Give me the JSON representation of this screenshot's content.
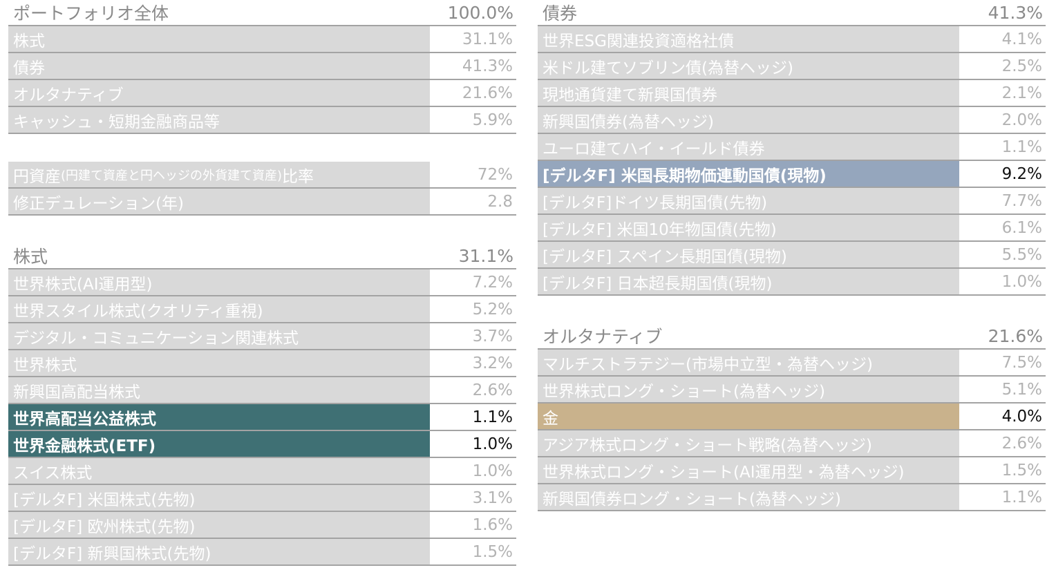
{
  "portfolio": {
    "title": "ポートフォリオ全体",
    "total": "100.0%",
    "rows": [
      {
        "label": "株式",
        "value": "31.1%"
      },
      {
        "label": "債券",
        "value": "41.3%"
      },
      {
        "label": "オルタナティブ",
        "value": "21.6%"
      },
      {
        "label": "キャッシュ・短期金融商品等",
        "value": "5.9%"
      }
    ]
  },
  "metrics": {
    "yen_ratio": {
      "label_main": "円資産",
      "label_sub": "(円建て資産と円ヘッジの外貨建て資産)",
      "label_tail": "比率",
      "value": "72%"
    },
    "duration": {
      "label": "修正デュレーション(年)",
      "value": "2.8"
    }
  },
  "equity": {
    "title": "株式",
    "total": "31.1%",
    "rows": [
      {
        "label": "世界株式(AI運用型)",
        "value": "7.2%"
      },
      {
        "label": "世界スタイル株式(クオリティ重視)",
        "value": "5.2%"
      },
      {
        "label": "デジタル・コミュニケーション関連株式",
        "value": "3.7%"
      },
      {
        "label": "世界株式",
        "value": "3.2%"
      },
      {
        "label": "新興国高配当株式",
        "value": "2.6%"
      },
      {
        "label": "世界高配当公益株式",
        "value": "1.1%"
      },
      {
        "label": "世界金融株式(ETF)",
        "value": "1.0%"
      },
      {
        "label": "スイス株式",
        "value": "1.0%"
      },
      {
        "label": "[デルタF] 米国株式(先物)",
        "value": "3.1%"
      },
      {
        "label": "[デルタF] 欧州株式(先物)",
        "value": "1.6%"
      },
      {
        "label": "[デルタF] 新興国株式(先物)",
        "value": "1.5%"
      }
    ]
  },
  "bonds": {
    "title": "債券",
    "total": "41.3%",
    "rows": [
      {
        "label": "世界ESG関連投資適格社債",
        "value": "4.1%"
      },
      {
        "label": "米ドル建てソブリン債(為替ヘッジ)",
        "value": "2.5%"
      },
      {
        "label": "現地通貨建て新興国債券",
        "value": "2.1%"
      },
      {
        "label": "新興国債券(為替ヘッジ)",
        "value": "2.0%"
      },
      {
        "label": "ユーロ建てハイ・イールド債券",
        "value": "1.1%"
      },
      {
        "label": "[デルタF] 米国長期物価連動国債(現物)",
        "value": "9.2%"
      },
      {
        "label": "[デルタF]ドイツ長期国債(先物)",
        "value": "7.7%"
      },
      {
        "label": "[デルタF] 米国10年物国債(先物)",
        "value": "6.1%"
      },
      {
        "label": "[デルタF] スペイン長期国債(現物)",
        "value": "5.5%"
      },
      {
        "label": "[デルタF] 日本超長期国債(現物)",
        "value": "1.0%"
      }
    ]
  },
  "alternatives": {
    "title": "オルタナティブ",
    "total": "21.6%",
    "rows": [
      {
        "label": "マルチストラテジー(市場中立型・為替ヘッジ)",
        "value": "7.5%"
      },
      {
        "label": "世界株式ロング・ショート(為替ヘッジ)",
        "value": "5.1%"
      },
      {
        "label": "金",
        "value": "4.0%"
      },
      {
        "label": "アジア株式ロング・ショート戦略(為替ヘッジ)",
        "value": "2.6%"
      },
      {
        "label": "世界株式ロング・ショート(AI運用型・為替ヘッジ)",
        "value": "1.5%"
      },
      {
        "label": "新興国債券ロング・ショート(為替ヘッジ)",
        "value": "1.1%"
      }
    ]
  },
  "colors": {
    "label_bg": "#d9d9d9",
    "highlight_teal": "#3f7074",
    "highlight_blue": "#95a6bd",
    "highlight_gold": "#c9b28c",
    "rule": "#a3a3a3"
  }
}
